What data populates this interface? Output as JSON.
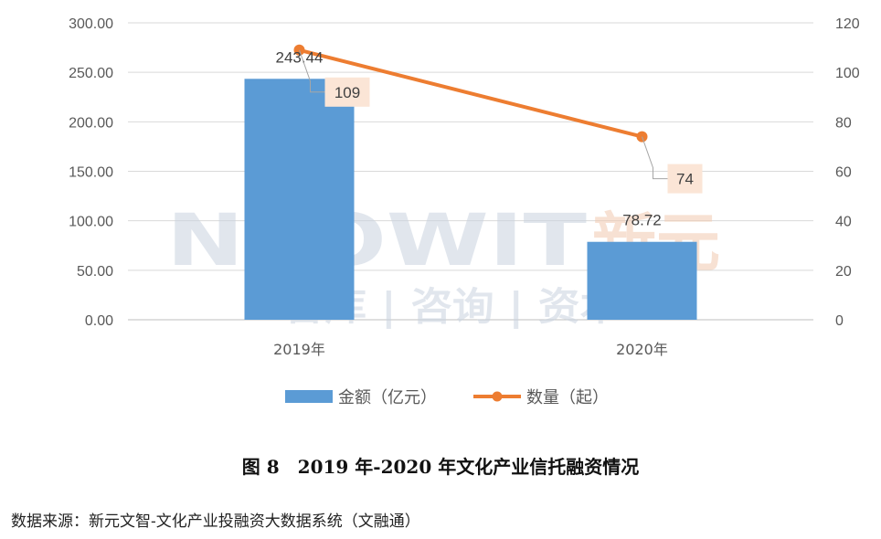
{
  "chart_data": {
    "type": "bar",
    "categories": [
      "2019年",
      "2020年"
    ],
    "series": [
      {
        "name": "金额（亿元）",
        "kind": "bar",
        "axis": "left",
        "color": "#5B9BD5",
        "values": [
          243.44,
          78.72
        ],
        "labels": [
          "243.44",
          "78.72"
        ]
      },
      {
        "name": "数量（起）",
        "kind": "line",
        "axis": "right",
        "color": "#ED7D31",
        "values": [
          109,
          74
        ],
        "labels": [
          "109",
          "74"
        ]
      }
    ],
    "y_left": {
      "ylim": [
        0,
        300
      ],
      "ticks": [
        "0.00",
        "50.00",
        "100.00",
        "150.00",
        "200.00",
        "250.00",
        "300.00"
      ]
    },
    "y_right": {
      "ylim": [
        0,
        120
      ],
      "ticks": [
        "0",
        "20",
        "40",
        "60",
        "80",
        "100",
        "120"
      ]
    },
    "grid": true,
    "legend": "bottom",
    "watermark": {
      "brand": "NEOWIT",
      "brand_cn": "新元",
      "sub": "智库 | 咨询 | 资本"
    }
  },
  "caption": "图 8　2019 年-2020 年文化产业信托融资情况",
  "source": "数据来源：新元文智-文化产业投融资大数据系统（文融通）"
}
